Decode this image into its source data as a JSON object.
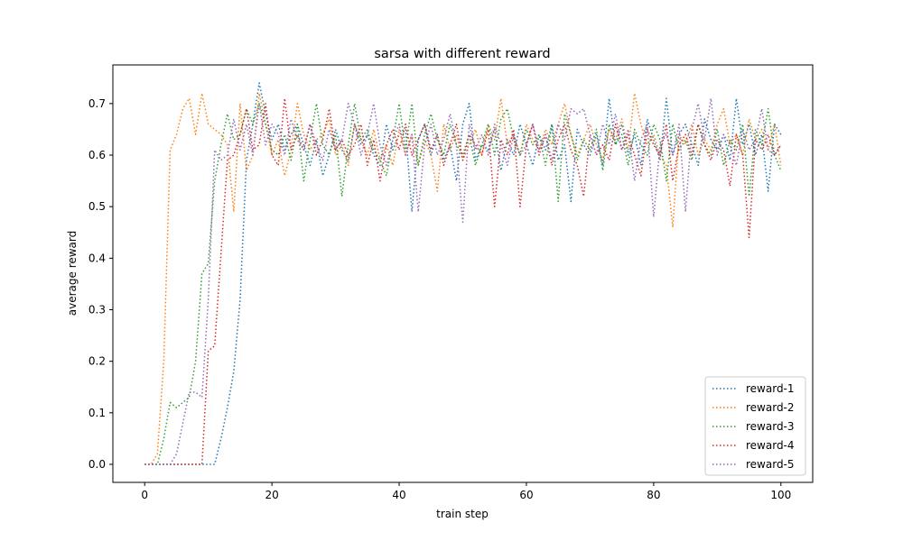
{
  "chart_data": {
    "type": "line",
    "title": "sarsa with different reward",
    "xlabel": "train step",
    "ylabel": "average reward",
    "xlim": [
      -5,
      105
    ],
    "ylim": [
      -0.035,
      0.775
    ],
    "xticks": [
      0,
      20,
      40,
      60,
      80,
      100
    ],
    "yticks": [
      0.0,
      0.1,
      0.2,
      0.3,
      0.4,
      0.5,
      0.6,
      0.7
    ],
    "ytick_labels": [
      "0.0",
      "0.1",
      "0.2",
      "0.3",
      "0.4",
      "0.5",
      "0.6",
      "0.7"
    ],
    "grid": false,
    "legend_position": "lower-right",
    "line_style": "dotted",
    "x": [
      0,
      1,
      2,
      3,
      4,
      5,
      6,
      7,
      8,
      9,
      10,
      11,
      12,
      13,
      14,
      15,
      16,
      17,
      18,
      19,
      20,
      21,
      22,
      23,
      24,
      25,
      26,
      27,
      28,
      29,
      30,
      31,
      32,
      33,
      34,
      35,
      36,
      37,
      38,
      39,
      40,
      41,
      42,
      43,
      44,
      45,
      46,
      47,
      48,
      49,
      50,
      51,
      52,
      53,
      54,
      55,
      56,
      57,
      58,
      59,
      60,
      61,
      62,
      63,
      64,
      65,
      66,
      67,
      68,
      69,
      70,
      71,
      72,
      73,
      74,
      75,
      76,
      77,
      78,
      79,
      80,
      81,
      82,
      83,
      84,
      85,
      86,
      87,
      88,
      89,
      90,
      91,
      92,
      93,
      94,
      95,
      96,
      97,
      98,
      99,
      100
    ],
    "series": [
      {
        "name": "reward-1",
        "color": "#1f77b4",
        "values": [
          0,
          0,
          0,
          0,
          0,
          0,
          0,
          0,
          0,
          0,
          0,
          0,
          0.05,
          0.11,
          0.18,
          0.32,
          0.59,
          0.66,
          0.74,
          0.68,
          0.63,
          0.66,
          0.61,
          0.64,
          0.66,
          0.62,
          0.58,
          0.63,
          0.56,
          0.6,
          0.65,
          0.61,
          0.59,
          0.66,
          0.62,
          0.64,
          0.6,
          0.58,
          0.66,
          0.61,
          0.64,
          0.65,
          0.49,
          0.63,
          0.66,
          0.6,
          0.64,
          0.59,
          0.62,
          0.55,
          0.66,
          0.7,
          0.59,
          0.62,
          0.61,
          0.65,
          0.57,
          0.63,
          0.6,
          0.66,
          0.62,
          0.58,
          0.64,
          0.61,
          0.66,
          0.59,
          0.62,
          0.51,
          0.65,
          0.62,
          0.6,
          0.64,
          0.58,
          0.71,
          0.62,
          0.66,
          0.6,
          0.64,
          0.58,
          0.67,
          0.63,
          0.59,
          0.71,
          0.6,
          0.64,
          0.66,
          0.62,
          0.58,
          0.67,
          0.63,
          0.61,
          0.64,
          0.59,
          0.71,
          0.62,
          0.66,
          0.6,
          0.64,
          0.53,
          0.66,
          0.64
        ]
      },
      {
        "name": "reward-2",
        "color": "#ff7f0e",
        "values": [
          0,
          0,
          0.02,
          0.2,
          0.61,
          0.64,
          0.69,
          0.71,
          0.64,
          0.72,
          0.66,
          0.65,
          0.64,
          0.62,
          0.49,
          0.7,
          0.57,
          0.6,
          0.72,
          0.66,
          0.6,
          0.63,
          0.56,
          0.61,
          0.7,
          0.64,
          0.61,
          0.63,
          0.64,
          0.67,
          0.6,
          0.62,
          0.58,
          0.66,
          0.63,
          0.6,
          0.65,
          0.59,
          0.62,
          0.58,
          0.65,
          0.6,
          0.64,
          0.58,
          0.63,
          0.6,
          0.53,
          0.66,
          0.61,
          0.64,
          0.59,
          0.62,
          0.65,
          0.6,
          0.66,
          0.63,
          0.71,
          0.62,
          0.64,
          0.6,
          0.66,
          0.63,
          0.61,
          0.65,
          0.62,
          0.66,
          0.7,
          0.64,
          0.6,
          0.63,
          0.66,
          0.62,
          0.59,
          0.65,
          0.63,
          0.67,
          0.61,
          0.72,
          0.66,
          0.62,
          0.64,
          0.6,
          0.58,
          0.46,
          0.64,
          0.62,
          0.66,
          0.6,
          0.63,
          0.61,
          0.66,
          0.69,
          0.62,
          0.64,
          0.6,
          0.67,
          0.63,
          0.65,
          0.61,
          0.66,
          0.58
        ]
      },
      {
        "name": "reward-3",
        "color": "#2ca02c",
        "values": [
          0,
          0,
          0,
          0.05,
          0.12,
          0.11,
          0.12,
          0.13,
          0.2,
          0.37,
          0.39,
          0.55,
          0.62,
          0.68,
          0.63,
          0.64,
          0.69,
          0.66,
          0.7,
          0.66,
          0.61,
          0.6,
          0.64,
          0.59,
          0.66,
          0.55,
          0.63,
          0.7,
          0.62,
          0.6,
          0.64,
          0.52,
          0.62,
          0.7,
          0.63,
          0.65,
          0.61,
          0.59,
          0.56,
          0.63,
          0.7,
          0.61,
          0.7,
          0.58,
          0.64,
          0.68,
          0.63,
          0.6,
          0.66,
          0.62,
          0.6,
          0.64,
          0.58,
          0.62,
          0.66,
          0.6,
          0.67,
          0.69,
          0.63,
          0.6,
          0.65,
          0.62,
          0.64,
          0.58,
          0.66,
          0.51,
          0.68,
          0.64,
          0.59,
          0.63,
          0.61,
          0.65,
          0.57,
          0.66,
          0.62,
          0.64,
          0.58,
          0.65,
          0.62,
          0.6,
          0.66,
          0.63,
          0.55,
          0.66,
          0.61,
          0.63,
          0.59,
          0.66,
          0.62,
          0.6,
          0.65,
          0.58,
          0.63,
          0.61,
          0.66,
          0.52,
          0.65,
          0.62,
          0.69,
          0.6,
          0.57
        ]
      },
      {
        "name": "reward-4",
        "color": "#d62728",
        "values": [
          0,
          0,
          0,
          0,
          0,
          0,
          0,
          0,
          0,
          0,
          0.22,
          0.23,
          0.41,
          0.59,
          0.6,
          0.64,
          0.69,
          0.61,
          0.62,
          0.7,
          0.6,
          0.58,
          0.71,
          0.61,
          0.64,
          0.61,
          0.66,
          0.6,
          0.63,
          0.69,
          0.61,
          0.63,
          0.6,
          0.62,
          0.66,
          0.58,
          0.63,
          0.55,
          0.62,
          0.65,
          0.61,
          0.66,
          0.6,
          0.63,
          0.66,
          0.61,
          0.64,
          0.58,
          0.62,
          0.66,
          0.59,
          0.64,
          0.62,
          0.6,
          0.65,
          0.5,
          0.63,
          0.6,
          0.65,
          0.5,
          0.62,
          0.66,
          0.6,
          0.64,
          0.58,
          0.63,
          0.66,
          0.61,
          0.58,
          0.52,
          0.64,
          0.6,
          0.62,
          0.59,
          0.66,
          0.61,
          0.64,
          0.6,
          0.56,
          0.65,
          0.62,
          0.6,
          0.66,
          0.55,
          0.62,
          0.64,
          0.6,
          0.66,
          0.62,
          0.59,
          0.63,
          0.61,
          0.54,
          0.64,
          0.6,
          0.44,
          0.63,
          0.61,
          0.64,
          0.6,
          0.62
        ]
      },
      {
        "name": "reward-5",
        "color": "#9467bd",
        "values": [
          0,
          0,
          0,
          0,
          0,
          0.02,
          0.08,
          0.14,
          0.14,
          0.13,
          0.32,
          0.61,
          0.59,
          0.6,
          0.67,
          0.61,
          0.66,
          0.6,
          0.7,
          0.62,
          0.66,
          0.64,
          0.6,
          0.67,
          0.63,
          0.61,
          0.66,
          0.62,
          0.59,
          0.65,
          0.61,
          0.63,
          0.7,
          0.66,
          0.6,
          0.64,
          0.7,
          0.62,
          0.58,
          0.63,
          0.66,
          0.6,
          0.64,
          0.49,
          0.62,
          0.66,
          0.6,
          0.63,
          0.68,
          0.62,
          0.47,
          0.66,
          0.61,
          0.64,
          0.6,
          0.66,
          0.62,
          0.58,
          0.64,
          0.6,
          0.62,
          0.66,
          0.61,
          0.64,
          0.59,
          0.66,
          0.63,
          0.69,
          0.68,
          0.69,
          0.64,
          0.6,
          0.66,
          0.62,
          0.68,
          0.61,
          0.65,
          0.55,
          0.63,
          0.66,
          0.48,
          0.62,
          0.64,
          0.6,
          0.66,
          0.49,
          0.65,
          0.7,
          0.63,
          0.71,
          0.6,
          0.64,
          0.62,
          0.58,
          0.65,
          0.61,
          0.63,
          0.69,
          0.61,
          0.6,
          0.62
        ]
      }
    ]
  }
}
